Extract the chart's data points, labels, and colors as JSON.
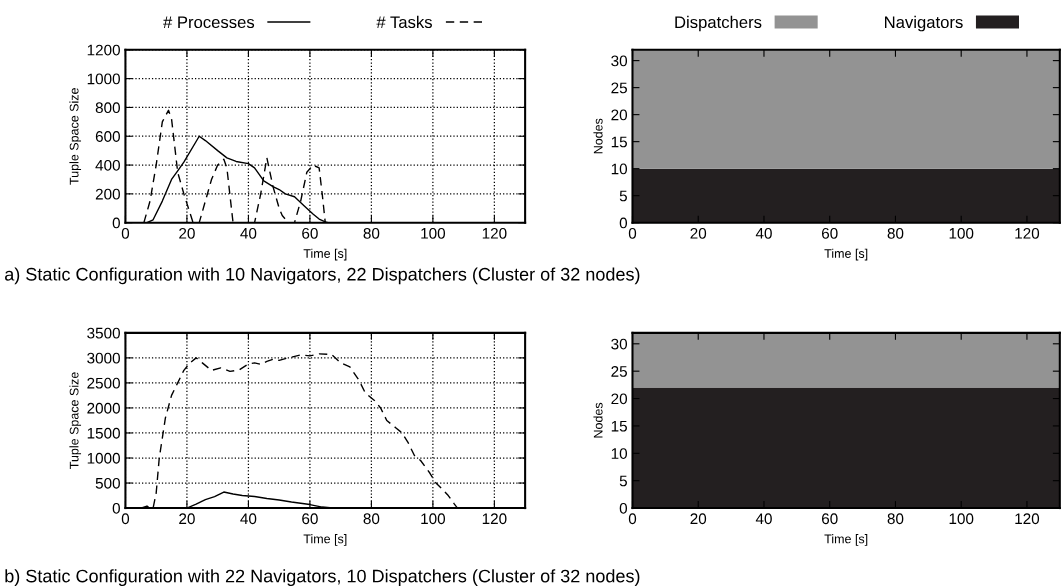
{
  "chart_data": [
    {
      "type": "line",
      "xlabel": "Time [s]",
      "ylabel": "Tuple Space Size",
      "xlim": [
        0,
        130
      ],
      "xticks": [
        0,
        20,
        40,
        60,
        80,
        100,
        120
      ],
      "ylim": [
        0,
        1200
      ],
      "yticks": [
        0,
        200,
        400,
        600,
        800,
        1000,
        1200
      ],
      "grid": true,
      "legend": "top",
      "annotations": [
        "a) Static Configuration with 10 Navigators, 22 Dispatchers (Cluster of 32 nodes)"
      ],
      "series": [
        {
          "name": "# Processes",
          "color": "#000000",
          "line_style": "solid",
          "x": [
            7,
            9,
            12,
            15,
            17,
            19,
            24,
            26,
            30,
            33,
            36,
            40,
            42,
            45,
            48,
            50,
            52,
            55,
            58,
            61,
            63,
            65,
            66
          ],
          "values": [
            0,
            20,
            150,
            300,
            360,
            420,
            600,
            570,
            500,
            450,
            425,
            410,
            380,
            290,
            250,
            230,
            200,
            180,
            120,
            60,
            25,
            5,
            0
          ]
        },
        {
          "name": "# Tasks",
          "color": "#000000",
          "line_style": "dashed",
          "x": [
            6,
            8,
            10,
            12,
            14,
            15,
            17,
            19,
            22,
            24,
            26,
            28,
            30,
            32,
            33,
            35,
            42,
            44,
            46,
            48,
            50,
            51,
            53,
            55,
            57,
            59,
            61,
            63,
            64,
            65
          ],
          "values": [
            0,
            150,
            400,
            700,
            780,
            720,
            350,
            200,
            0,
            0,
            150,
            300,
            400,
            440,
            380,
            0,
            0,
            200,
            450,
            250,
            100,
            50,
            0,
            0,
            150,
            350,
            400,
            380,
            200,
            0
          ]
        }
      ]
    },
    {
      "type": "area",
      "stacked": true,
      "xlabel": "Time [s]",
      "ylabel": "Nodes",
      "xlim": [
        0,
        130
      ],
      "xticks": [
        0,
        20,
        40,
        60,
        80,
        100,
        120
      ],
      "ylim": [
        0,
        32
      ],
      "yticks": [
        0,
        5,
        10,
        15,
        20,
        25,
        30
      ],
      "legend": "top",
      "series": [
        {
          "name": "Navigators",
          "color": "#231f20",
          "x": [
            0,
            130
          ],
          "values": [
            10,
            10
          ]
        },
        {
          "name": "Dispatchers",
          "color": "#939393",
          "x": [
            0,
            130
          ],
          "values": [
            22,
            22
          ]
        }
      ]
    },
    {
      "type": "line",
      "xlabel": "Time [s]",
      "ylabel": "Tuple Space Size",
      "xlim": [
        0,
        130
      ],
      "xticks": [
        0,
        20,
        40,
        60,
        80,
        100,
        120
      ],
      "ylim": [
        0,
        3500
      ],
      "yticks": [
        0,
        500,
        1000,
        1500,
        2000,
        2500,
        3000,
        3500
      ],
      "grid": true,
      "annotations": [
        "b) Static Configuration with 22 Navigators, 10 Dispatchers (Cluster of 32 nodes)"
      ],
      "series": [
        {
          "color": "#000000",
          "line_style": "solid",
          "x": [
            20,
            23,
            26,
            29,
            32,
            35,
            38,
            42,
            46,
            50,
            54,
            60,
            64,
            68
          ],
          "values": [
            0,
            80,
            170,
            230,
            320,
            280,
            250,
            230,
            190,
            160,
            120,
            70,
            20,
            0
          ]
        },
        {
          "color": "#000000",
          "line_style": "dashed",
          "x": [
            5,
            7,
            8,
            9,
            10,
            11,
            13,
            15,
            17,
            19,
            21,
            23,
            25,
            28,
            31,
            34,
            37,
            40,
            42,
            44,
            46,
            48,
            50,
            53,
            57,
            60,
            63,
            67,
            70,
            73,
            76,
            78,
            81,
            83,
            85,
            88,
            90,
            92,
            94,
            96,
            99,
            101,
            103,
            105,
            107,
            108
          ],
          "values": [
            0,
            40,
            0,
            0,
            300,
            1000,
            1800,
            2250,
            2500,
            2750,
            2900,
            3000,
            2900,
            2750,
            2800,
            2730,
            2760,
            2880,
            2900,
            2870,
            2930,
            2970,
            2950,
            3000,
            3060,
            3040,
            3080,
            3070,
            2900,
            2820,
            2550,
            2300,
            2150,
            2000,
            1750,
            1600,
            1500,
            1300,
            1050,
            950,
            700,
            500,
            380,
            250,
            80,
            0
          ]
        }
      ]
    },
    {
      "type": "area",
      "stacked": true,
      "xlabel": "Time [s]",
      "ylabel": "Nodes",
      "xlim": [
        0,
        130
      ],
      "xticks": [
        0,
        20,
        40,
        60,
        80,
        100,
        120
      ],
      "ylim": [
        0,
        32
      ],
      "yticks": [
        0,
        5,
        10,
        15,
        20,
        25,
        30
      ],
      "series": [
        {
          "color": "#231f20",
          "x": [
            0,
            130
          ],
          "values": [
            22,
            22
          ]
        },
        {
          "color": "#939393",
          "x": [
            0,
            130
          ],
          "values": [
            10,
            10
          ]
        }
      ]
    }
  ]
}
